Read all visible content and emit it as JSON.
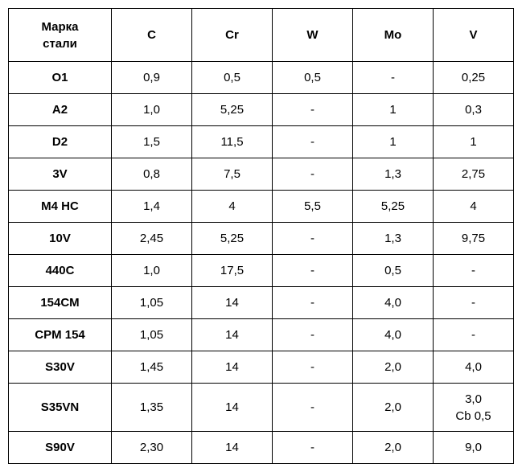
{
  "table": {
    "header": [
      "Марка\nстали",
      "C",
      "Cr",
      "W",
      "Mo",
      "V"
    ],
    "rows": [
      [
        "O1",
        "0,9",
        "0,5",
        "0,5",
        "-",
        "0,25"
      ],
      [
        "A2",
        "1,0",
        "5,25",
        "-",
        "1",
        "0,3"
      ],
      [
        "D2",
        "1,5",
        "11,5",
        "-",
        "1",
        "1"
      ],
      [
        "3V",
        "0,8",
        "7,5",
        "-",
        "1,3",
        "2,75"
      ],
      [
        "M4 HC",
        "1,4",
        "4",
        "5,5",
        "5,25",
        "4"
      ],
      [
        "10V",
        "2,45",
        "5,25",
        "-",
        "1,3",
        "9,75"
      ],
      [
        "440C",
        "1,0",
        "17,5",
        "-",
        "0,5",
        "-"
      ],
      [
        "154CM",
        "1,05",
        "14",
        "-",
        "4,0",
        "-"
      ],
      [
        "CPM 154",
        "1,05",
        "14",
        "-",
        "4,0",
        "-"
      ],
      [
        "S30V",
        "1,45",
        "14",
        "-",
        "2,0",
        "4,0"
      ],
      [
        "S35VN",
        "1,35",
        "14",
        "-",
        "2,0",
        "3,0\nCb 0,5"
      ],
      [
        "S90V",
        "2,30",
        "14",
        "-",
        "2,0",
        "9,0"
      ]
    ]
  }
}
